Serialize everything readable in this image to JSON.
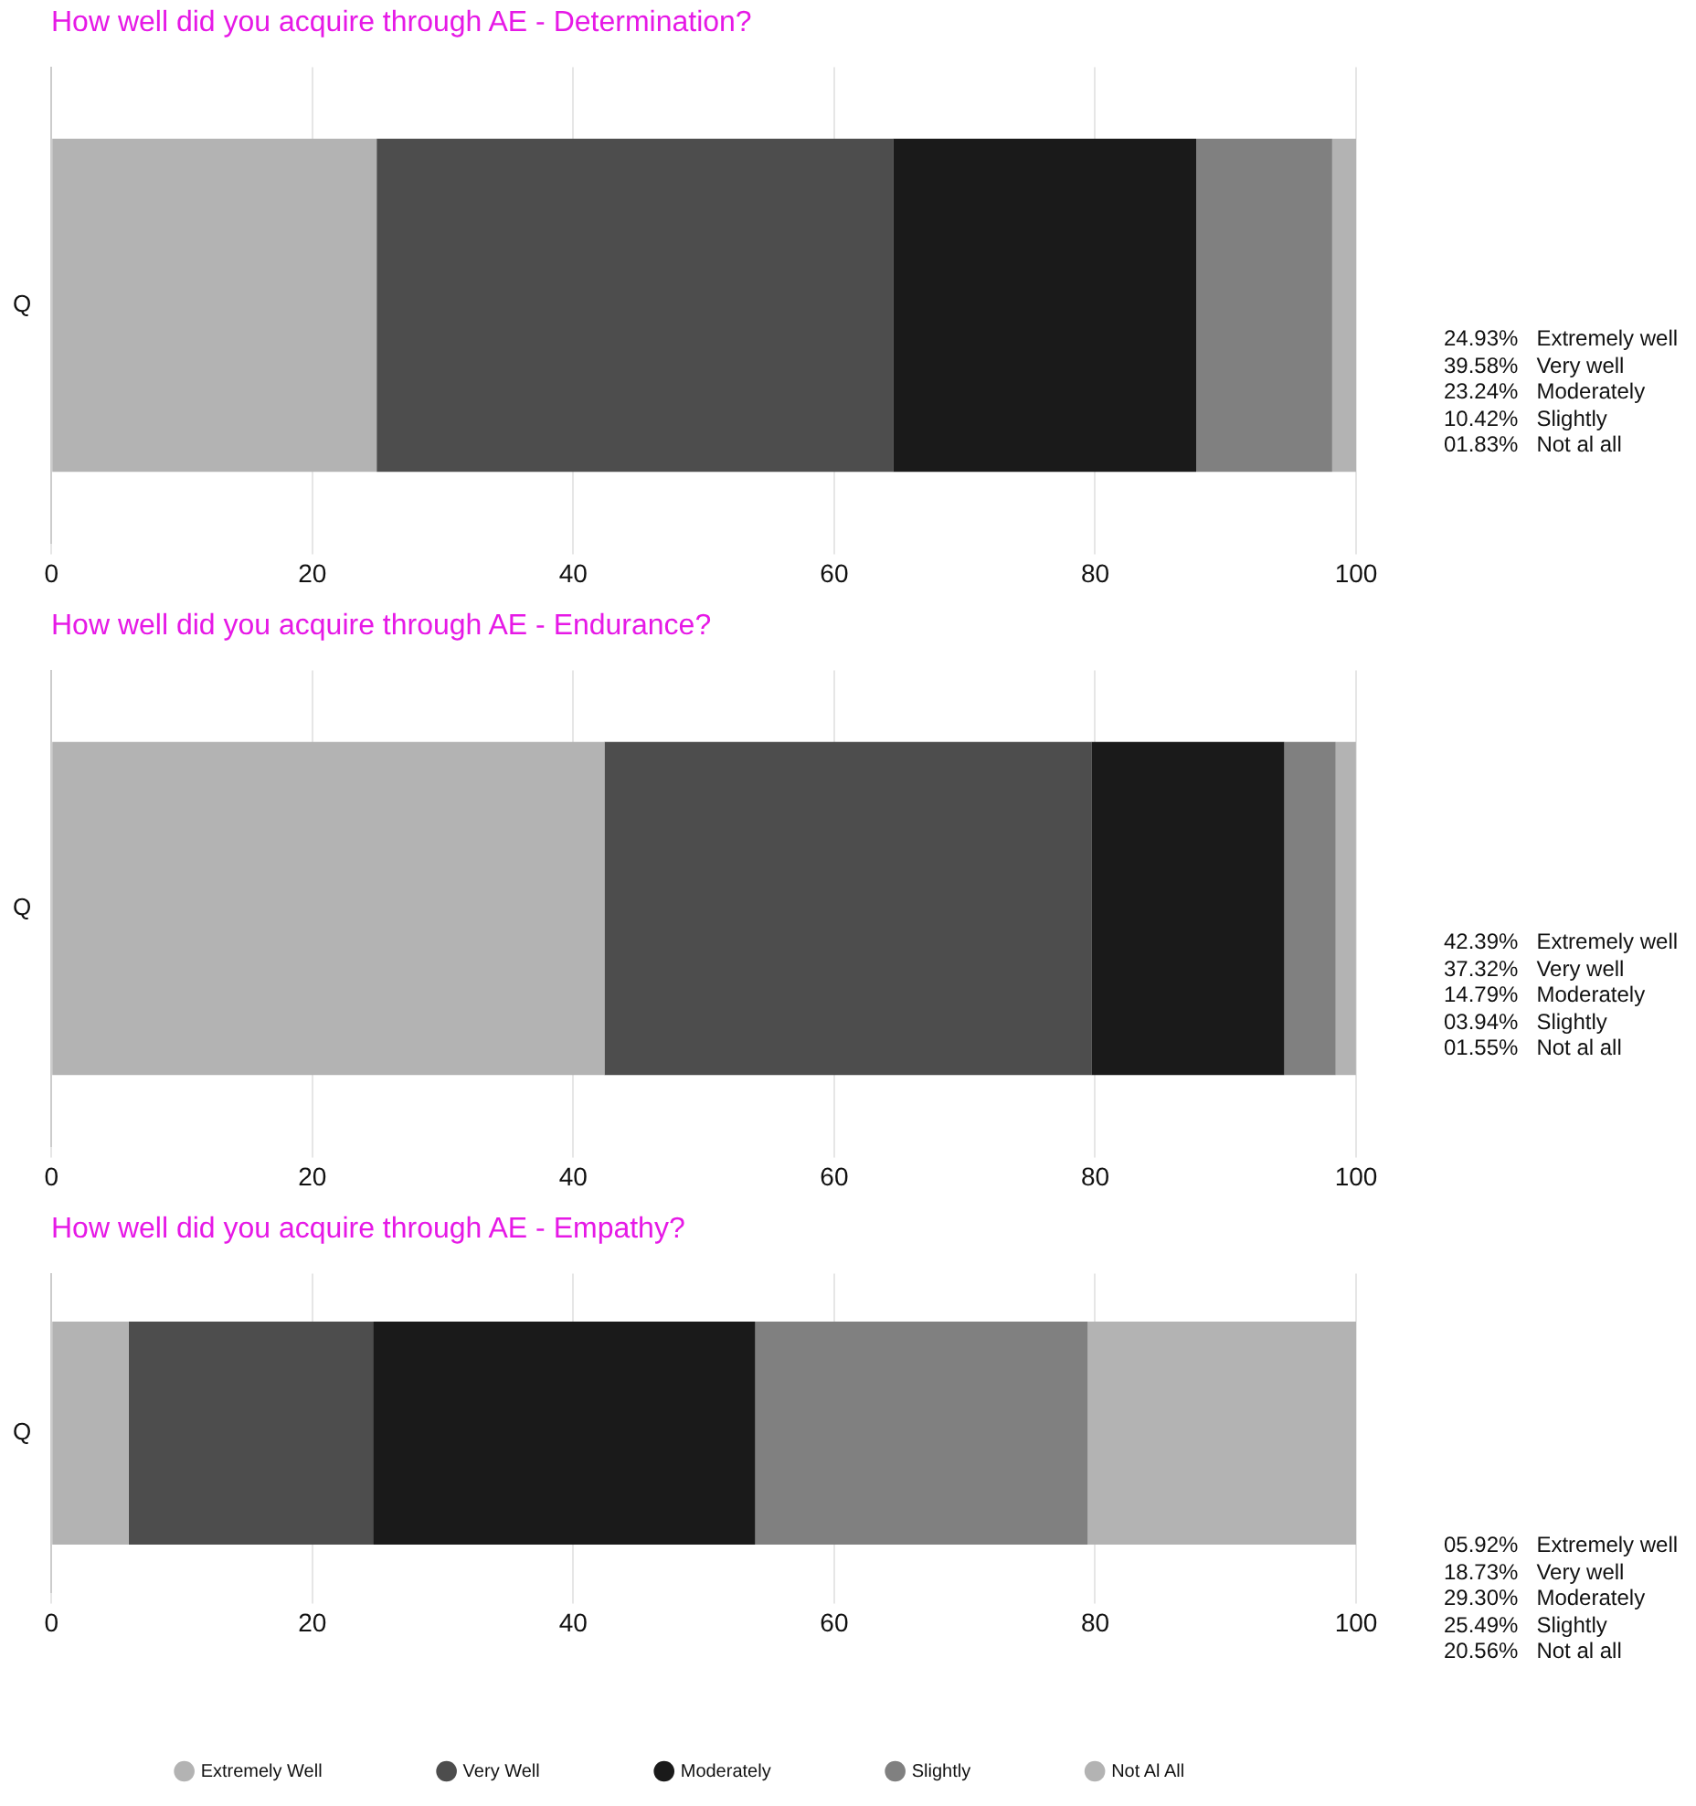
{
  "chart_data": [
    {
      "type": "bar",
      "orientation": "horizontal",
      "stacked": true,
      "title": "How well did you acquire through AE - Determination?",
      "categories": [
        "Q"
      ],
      "series": [
        {
          "color": "#b3b3b3",
          "values": [
            24.93
          ]
        },
        {
          "color": "#4d4d4d",
          "values": [
            39.58
          ]
        },
        {
          "color": "#1a1a1a",
          "values": [
            23.24
          ]
        },
        {
          "color": "#808080",
          "values": [
            10.42
          ]
        },
        {
          "color": "#b3b3b3",
          "values": [
            1.83
          ]
        }
      ],
      "xlim": [
        0,
        100
      ],
      "xticks": [
        0,
        20,
        40,
        60,
        80,
        100
      ],
      "grid": "x",
      "legend": false,
      "annotations": [
        "24.93%   Extremely well",
        "39.58%   Very well",
        "23.24%   Moderately",
        "10.42%   Slightly",
        "01.83%   Not al all"
      ]
    },
    {
      "type": "bar",
      "orientation": "horizontal",
      "stacked": true,
      "title": "How well did you acquire through AE - Endurance?",
      "categories": [
        "Q"
      ],
      "series": [
        {
          "color": "#b3b3b3",
          "values": [
            42.39
          ]
        },
        {
          "color": "#4d4d4d",
          "values": [
            37.32
          ]
        },
        {
          "color": "#1a1a1a",
          "values": [
            14.79
          ]
        },
        {
          "color": "#808080",
          "values": [
            3.94
          ]
        },
        {
          "color": "#b3b3b3",
          "values": [
            1.55
          ]
        }
      ],
      "xlim": [
        0,
        100
      ],
      "xticks": [
        0,
        20,
        40,
        60,
        80,
        100
      ],
      "grid": "x",
      "legend": false,
      "annotations": [
        "42.39%   Extremely well",
        "37.32%   Very well",
        "14.79%   Moderately",
        "03.94%   Slightly",
        "01.55%   Not al all"
      ]
    },
    {
      "type": "bar",
      "orientation": "horizontal",
      "stacked": true,
      "title": "How well did you acquire through AE - Empathy?",
      "categories": [
        "Q"
      ],
      "series": [
        {
          "name": "Extremely Well",
          "color": "#b3b3b3",
          "values": [
            5.92
          ]
        },
        {
          "name": "Very Well",
          "color": "#4d4d4d",
          "values": [
            18.73
          ]
        },
        {
          "name": "Moderately",
          "color": "#1a1a1a",
          "values": [
            29.3
          ]
        },
        {
          "name": "Slightly",
          "color": "#808080",
          "values": [
            25.49
          ]
        },
        {
          "name": "Not Al All",
          "color": "#b3b3b3",
          "values": [
            20.56
          ]
        }
      ],
      "xlim": [
        0,
        100
      ],
      "xticks": [
        0,
        20,
        40,
        60,
        80,
        100
      ],
      "grid": "x",
      "legend": "bottom",
      "annotations": [
        "05.92%   Extremely well",
        "18.73%   Very well",
        "29.30%   Moderately",
        "25.49%   Slightly",
        "20.56%   Not al all"
      ]
    }
  ]
}
